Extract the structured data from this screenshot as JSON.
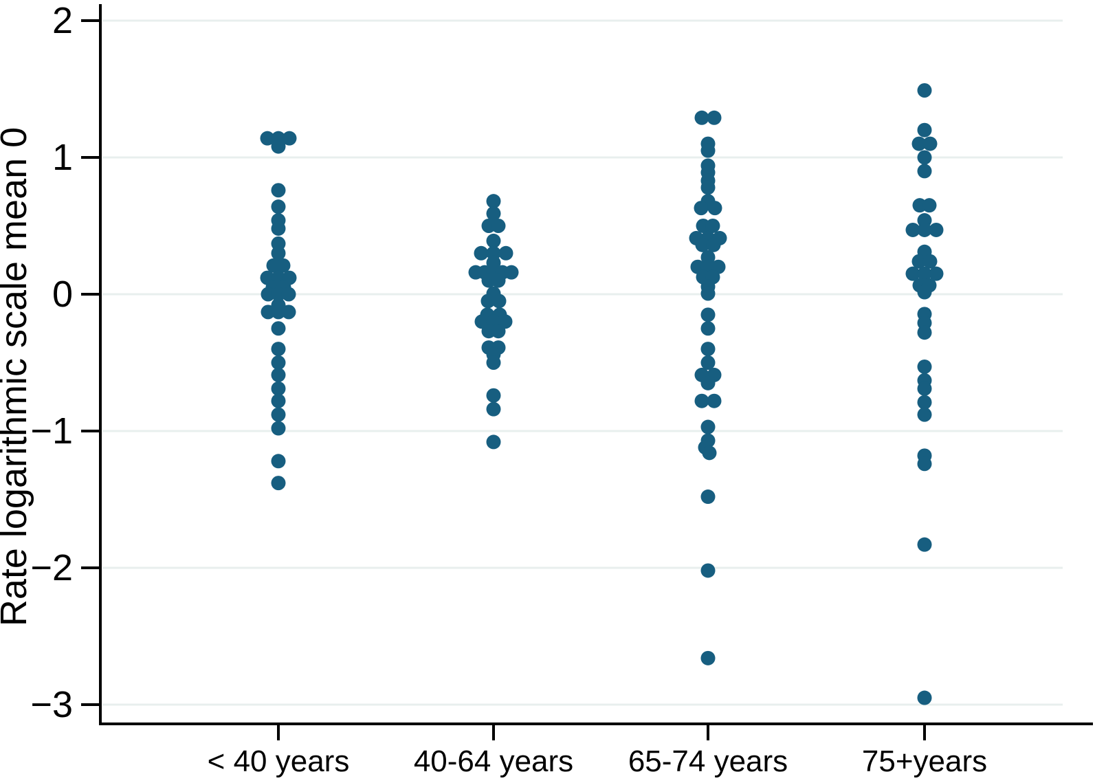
{
  "chart_data": {
    "type": "scatter",
    "subtype": "strip-plot",
    "title": "",
    "ylabel": "Rate logarithmic scale mean 0",
    "xlabel": "",
    "categories": [
      "< 40 years",
      "40-64 years",
      "65-74 years",
      "75+years"
    ],
    "yticks": [
      2,
      1,
      0,
      -1,
      -2,
      -3
    ],
    "ytick_labels": [
      "2",
      "1",
      "0",
      "−1",
      "−2",
      "−3"
    ],
    "ylim": [
      -3.25,
      2.1
    ],
    "grid": "horizontal-light",
    "legend": "none",
    "series": [
      {
        "name": "< 40 years",
        "points": [
          {
            "v": 1.14,
            "dx": -16
          },
          {
            "v": 1.14,
            "dx": 0
          },
          {
            "v": 1.14,
            "dx": 16
          },
          {
            "v": 1.08,
            "dx": 0
          },
          {
            "v": 0.76
          },
          {
            "v": 0.64
          },
          {
            "v": 0.54
          },
          {
            "v": 0.48
          },
          {
            "v": 0.37
          },
          {
            "v": 0.3
          },
          {
            "v": 0.21,
            "dx": -7
          },
          {
            "v": 0.21,
            "dx": 7
          },
          {
            "v": 0.12,
            "dx": -16
          },
          {
            "v": 0.12,
            "dx": 0
          },
          {
            "v": 0.12,
            "dx": 16
          },
          {
            "v": 0.05,
            "dx": -8
          },
          {
            "v": 0.05,
            "dx": 8
          },
          {
            "v": 0.0,
            "dx": -15
          },
          {
            "v": 0.0,
            "dx": 0
          },
          {
            "v": 0.0,
            "dx": 15
          },
          {
            "v": -0.08
          },
          {
            "v": -0.13,
            "dx": -15
          },
          {
            "v": -0.13,
            "dx": 0
          },
          {
            "v": -0.13,
            "dx": 15
          },
          {
            "v": -0.25
          },
          {
            "v": -0.4
          },
          {
            "v": -0.5
          },
          {
            "v": -0.59
          },
          {
            "v": -0.69
          },
          {
            "v": -0.78
          },
          {
            "v": -0.88
          },
          {
            "v": -0.98
          },
          {
            "v": -1.22
          },
          {
            "v": -1.38
          }
        ]
      },
      {
        "name": "40-64 years",
        "points": [
          {
            "v": 0.68
          },
          {
            "v": 0.59
          },
          {
            "v": 0.5,
            "dx": -7
          },
          {
            "v": 0.5,
            "dx": 7
          },
          {
            "v": 0.39
          },
          {
            "v": 0.3,
            "dx": -18
          },
          {
            "v": 0.3,
            "dx": 0
          },
          {
            "v": 0.3,
            "dx": 18
          },
          {
            "v": 0.23
          },
          {
            "v": 0.16,
            "dx": -26
          },
          {
            "v": 0.16,
            "dx": -13
          },
          {
            "v": 0.16,
            "dx": 0
          },
          {
            "v": 0.16,
            "dx": 13
          },
          {
            "v": 0.16,
            "dx": 26
          },
          {
            "v": 0.1,
            "dx": -7
          },
          {
            "v": 0.1,
            "dx": 7
          },
          {
            "v": 0.005
          },
          {
            "v": -0.05,
            "dx": -8
          },
          {
            "v": -0.05,
            "dx": 8
          },
          {
            "v": -0.15,
            "dx": -9
          },
          {
            "v": -0.15,
            "dx": 9
          },
          {
            "v": -0.2,
            "dx": -17
          },
          {
            "v": -0.2,
            "dx": 0
          },
          {
            "v": -0.2,
            "dx": 17
          },
          {
            "v": -0.27,
            "dx": -7
          },
          {
            "v": -0.27,
            "dx": 7
          },
          {
            "v": -0.39,
            "dx": -7
          },
          {
            "v": -0.39,
            "dx": 7
          },
          {
            "v": -0.44
          },
          {
            "v": -0.5
          },
          {
            "v": -0.74
          },
          {
            "v": -0.84
          },
          {
            "v": -1.08
          }
        ]
      },
      {
        "name": "65-74 years",
        "points": [
          {
            "v": 1.29,
            "dx": -9
          },
          {
            "v": 1.29,
            "dx": 9
          },
          {
            "v": 1.1
          },
          {
            "v": 1.05
          },
          {
            "v": 0.94
          },
          {
            "v": 0.89
          },
          {
            "v": 0.83
          },
          {
            "v": 0.78
          },
          {
            "v": 0.68
          },
          {
            "v": 0.63,
            "dx": -10
          },
          {
            "v": 0.63,
            "dx": 10
          },
          {
            "v": 0.5,
            "dx": -7
          },
          {
            "v": 0.5,
            "dx": 7
          },
          {
            "v": 0.41,
            "dx": -17
          },
          {
            "v": 0.41,
            "dx": 0
          },
          {
            "v": 0.41,
            "dx": 17
          },
          {
            "v": 0.36,
            "dx": -8
          },
          {
            "v": 0.36,
            "dx": 8
          },
          {
            "v": 0.27
          },
          {
            "v": 0.2,
            "dx": -15
          },
          {
            "v": 0.2,
            "dx": 0
          },
          {
            "v": 0.2,
            "dx": 15
          },
          {
            "v": 0.125,
            "dx": -7
          },
          {
            "v": 0.125,
            "dx": 7
          },
          {
            "v": 0.055
          },
          {
            "v": 0.005
          },
          {
            "v": -0.15
          },
          {
            "v": -0.25
          },
          {
            "v": -0.4
          },
          {
            "v": -0.5
          },
          {
            "v": -0.59,
            "dx": -9
          },
          {
            "v": -0.59,
            "dx": 9
          },
          {
            "v": -0.65
          },
          {
            "v": -0.78,
            "dx": -9
          },
          {
            "v": -0.78,
            "dx": 9
          },
          {
            "v": -0.97
          },
          {
            "v": -1.07
          },
          {
            "v": -1.12,
            "dx": -4
          },
          {
            "v": -1.16,
            "dx": 2
          },
          {
            "v": -1.48
          },
          {
            "v": -2.02
          },
          {
            "v": -2.66
          }
        ]
      },
      {
        "name": "75+years",
        "points": [
          {
            "v": 1.49
          },
          {
            "v": 1.2
          },
          {
            "v": 1.1,
            "dx": -8
          },
          {
            "v": 1.1,
            "dx": 8
          },
          {
            "v": 1.0
          },
          {
            "v": 0.9
          },
          {
            "v": 0.65,
            "dx": -7
          },
          {
            "v": 0.65,
            "dx": 7
          },
          {
            "v": 0.54
          },
          {
            "v": 0.47,
            "dx": -17
          },
          {
            "v": 0.47,
            "dx": 0
          },
          {
            "v": 0.47,
            "dx": 17
          },
          {
            "v": 0.31
          },
          {
            "v": 0.24,
            "dx": -8
          },
          {
            "v": 0.24,
            "dx": 8
          },
          {
            "v": 0.15,
            "dx": -17
          },
          {
            "v": 0.15,
            "dx": 0
          },
          {
            "v": 0.15,
            "dx": 17
          },
          {
            "v": 0.065,
            "dx": -7
          },
          {
            "v": 0.065,
            "dx": 7
          },
          {
            "v": 0.015
          },
          {
            "v": -0.145
          },
          {
            "v": -0.21
          },
          {
            "v": -0.28
          },
          {
            "v": -0.53
          },
          {
            "v": -0.63
          },
          {
            "v": -0.69
          },
          {
            "v": -0.79
          },
          {
            "v": -0.88
          },
          {
            "v": -1.18
          },
          {
            "v": -1.24
          },
          {
            "v": -1.83
          },
          {
            "v": -2.95
          }
        ]
      }
    ]
  },
  "colors": {
    "dot": "#175e80",
    "gridline": "#e8efee",
    "axis": "#000000",
    "text": "#000000",
    "background": "#ffffff"
  }
}
